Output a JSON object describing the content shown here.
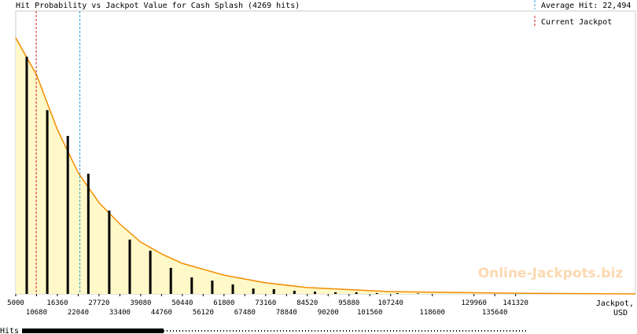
{
  "chart_data": {
    "type": "bar",
    "title": "Hit Probability vs Jackpot Value for Cash Splash (4269 hits)",
    "legend": {
      "average_label": "Average Hit: 22,494",
      "current_label": "Current Jackpot"
    },
    "average_hit": 22494,
    "current_jackpot": 10600,
    "xlabel": "Jackpot,",
    "xunit": "USD",
    "rug_label": "Hits",
    "watermark": "Online-Jackpots.biz",
    "x": [
      8000,
      13600,
      19200,
      24800,
      30500,
      36100,
      41700,
      47300,
      53000,
      58600,
      64200,
      69800,
      75400,
      81000,
      86600,
      92200,
      97900,
      103500,
      109100,
      114700
    ],
    "values": [
      1048,
      812,
      698,
      531,
      368,
      240,
      191,
      115,
      73,
      59,
      42,
      24,
      21,
      14,
      10,
      7,
      7,
      4,
      3,
      2
    ],
    "color": "#000000",
    "curve": {
      "color": "#f28c00",
      "fill": "#fff8c8",
      "x": [
        5000,
        10680,
        16360,
        22040,
        27720,
        33400,
        39080,
        44760,
        50440,
        61800,
        73160,
        84520,
        107240,
        141320,
        174000
      ],
      "values": [
        1131,
        968,
        726,
        535,
        403,
        309,
        229,
        177,
        135,
        83,
        49,
        28,
        10,
        3,
        0
      ]
    },
    "xlim": [
      5000,
      174000
    ],
    "ylim": [
      0,
      1250
    ],
    "xticks": [
      5000,
      10680,
      16360,
      22040,
      27720,
      33400,
      39080,
      44760,
      50440,
      56120,
      61800,
      67480,
      73160,
      78840,
      84520,
      90200,
      95880,
      101560,
      107240,
      118600,
      129960,
      135640,
      141320
    ]
  }
}
